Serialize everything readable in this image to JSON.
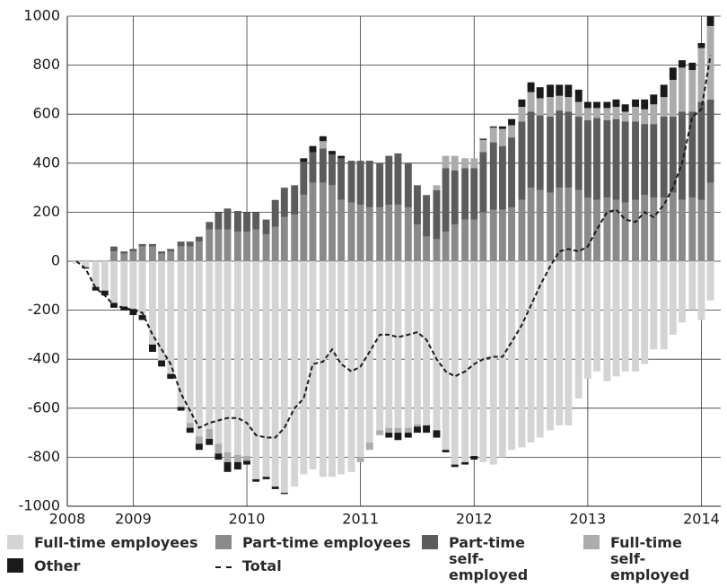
{
  "chart_data": {
    "type": "bar",
    "stacked": true,
    "x": [
      2008.5,
      2008.58,
      2008.67,
      2008.75,
      2008.83,
      2008.92,
      2009.0,
      2009.08,
      2009.17,
      2009.25,
      2009.33,
      2009.42,
      2009.5,
      2009.58,
      2009.67,
      2009.75,
      2009.83,
      2009.92,
      2010.0,
      2010.08,
      2010.17,
      2010.25,
      2010.33,
      2010.42,
      2010.5,
      2010.58,
      2010.67,
      2010.75,
      2010.83,
      2010.92,
      2011.0,
      2011.08,
      2011.17,
      2011.25,
      2011.33,
      2011.42,
      2011.5,
      2011.58,
      2011.67,
      2011.75,
      2011.83,
      2011.92,
      2012.0,
      2012.08,
      2012.17,
      2012.25,
      2012.33,
      2012.42,
      2012.5,
      2012.58,
      2012.67,
      2012.75,
      2012.83,
      2012.92,
      2013.0,
      2013.08,
      2013.17,
      2013.25,
      2013.33,
      2013.42,
      2013.5,
      2013.58,
      2013.67,
      2013.75,
      2013.83,
      2013.92,
      2014.0,
      2014.08
    ],
    "series": [
      {
        "name": "Full-time employees",
        "color": "#d4d4d4",
        "values": [
          -10,
          -25,
          -105,
          -120,
          -170,
          -185,
          -195,
          -220,
          -340,
          -405,
          -460,
          -595,
          -660,
          -715,
          -685,
          -745,
          -780,
          -790,
          -795,
          -890,
          -880,
          -920,
          -945,
          -920,
          -870,
          -850,
          -880,
          -880,
          -870,
          -860,
          -800,
          -740,
          -690,
          -680,
          -680,
          -680,
          -665,
          -670,
          -690,
          -770,
          -830,
          -820,
          -795,
          -820,
          -830,
          -800,
          -770,
          -760,
          -740,
          -720,
          -690,
          -670,
          -670,
          -560,
          -480,
          -450,
          -490,
          -470,
          -450,
          -450,
          -420,
          -360,
          -360,
          -300,
          -250,
          -200,
          -240,
          -160
        ]
      },
      {
        "name": "Part-time employees",
        "color": "#8a8a8a",
        "values": [
          0,
          0,
          0,
          0,
          40,
          30,
          40,
          60,
          60,
          30,
          40,
          60,
          60,
          80,
          130,
          130,
          130,
          120,
          120,
          130,
          110,
          140,
          180,
          190,
          270,
          320,
          320,
          310,
          250,
          240,
          230,
          220,
          220,
          230,
          230,
          220,
          150,
          100,
          90,
          120,
          150,
          170,
          170,
          200,
          210,
          210,
          220,
          250,
          300,
          290,
          280,
          300,
          300,
          290,
          260,
          250,
          260,
          250,
          240,
          250,
          270,
          260,
          260,
          280,
          250,
          260,
          250,
          320
        ]
      },
      {
        "name": "Part-time self-employed",
        "color": "#5c5c5c",
        "values": [
          0,
          0,
          0,
          0,
          20,
          10,
          10,
          10,
          10,
          10,
          10,
          20,
          20,
          20,
          30,
          70,
          85,
          85,
          80,
          70,
          60,
          110,
          120,
          120,
          135,
          125,
          140,
          125,
          170,
          170,
          180,
          190,
          180,
          200,
          210,
          180,
          160,
          170,
          200,
          260,
          220,
          210,
          210,
          245,
          275,
          260,
          285,
          320,
          310,
          305,
          310,
          315,
          310,
          300,
          315,
          335,
          315,
          330,
          330,
          320,
          290,
          300,
          330,
          310,
          360,
          350,
          400,
          340
        ]
      },
      {
        "name": "Full-time self-employed",
        "color": "#acacac",
        "values": [
          0,
          0,
          0,
          0,
          0,
          0,
          0,
          0,
          0,
          0,
          0,
          0,
          -20,
          -30,
          -40,
          -40,
          -40,
          -30,
          -20,
          0,
          0,
          0,
          0,
          0,
          0,
          0,
          30,
          0,
          0,
          0,
          -20,
          -30,
          -20,
          -20,
          -20,
          -20,
          -10,
          0,
          20,
          50,
          60,
          40,
          40,
          50,
          60,
          70,
          50,
          60,
          80,
          70,
          80,
          60,
          60,
          60,
          50,
          40,
          50,
          50,
          40,
          60,
          60,
          80,
          80,
          150,
          180,
          170,
          220,
          300
        ]
      },
      {
        "name": "Other",
        "color": "#1a1a1a",
        "values": [
          0,
          -5,
          -15,
          -20,
          -20,
          -15,
          -25,
          -20,
          -30,
          -25,
          -20,
          -15,
          -20,
          -25,
          -25,
          -25,
          -40,
          -30,
          -15,
          -10,
          -10,
          -10,
          -5,
          0,
          15,
          25,
          20,
          15,
          10,
          0,
          0,
          0,
          0,
          -20,
          -30,
          -20,
          -25,
          -30,
          -30,
          -10,
          -10,
          -10,
          -15,
          5,
          5,
          10,
          25,
          30,
          40,
          45,
          50,
          45,
          50,
          50,
          25,
          25,
          25,
          30,
          30,
          30,
          40,
          40,
          50,
          50,
          30,
          30,
          20,
          40
        ]
      },
      {
        "name": "Total",
        "type": "line",
        "color": "#1a1a1a",
        "style": "dashed",
        "values": [
          0,
          -30,
          -110,
          -140,
          -180,
          -190,
          -200,
          -210,
          -300,
          -360,
          -420,
          -540,
          -610,
          -680,
          -660,
          -650,
          -640,
          -640,
          -660,
          -710,
          -720,
          -720,
          -680,
          -600,
          -560,
          -420,
          -410,
          -360,
          -420,
          -450,
          -430,
          -370,
          -300,
          -300,
          -310,
          -300,
          -290,
          -320,
          -400,
          -450,
          -470,
          -450,
          -420,
          -400,
          -390,
          -390,
          -330,
          -260,
          -180,
          -100,
          -20,
          40,
          50,
          40,
          60,
          130,
          200,
          210,
          170,
          160,
          200,
          180,
          230,
          300,
          400,
          590,
          620,
          840
        ]
      }
    ],
    "xlim": [
      2008.42,
      2014.17
    ],
    "xticks": [
      {
        "value": 2008.42,
        "label": "2008"
      },
      2009,
      2010,
      2011,
      2012,
      2013,
      2014
    ],
    "ylim": [
      -1000,
      1000
    ],
    "yticks": [
      -1000,
      -800,
      -600,
      -400,
      -200,
      0,
      200,
      400,
      600,
      800,
      1000
    ],
    "grid": true
  }
}
